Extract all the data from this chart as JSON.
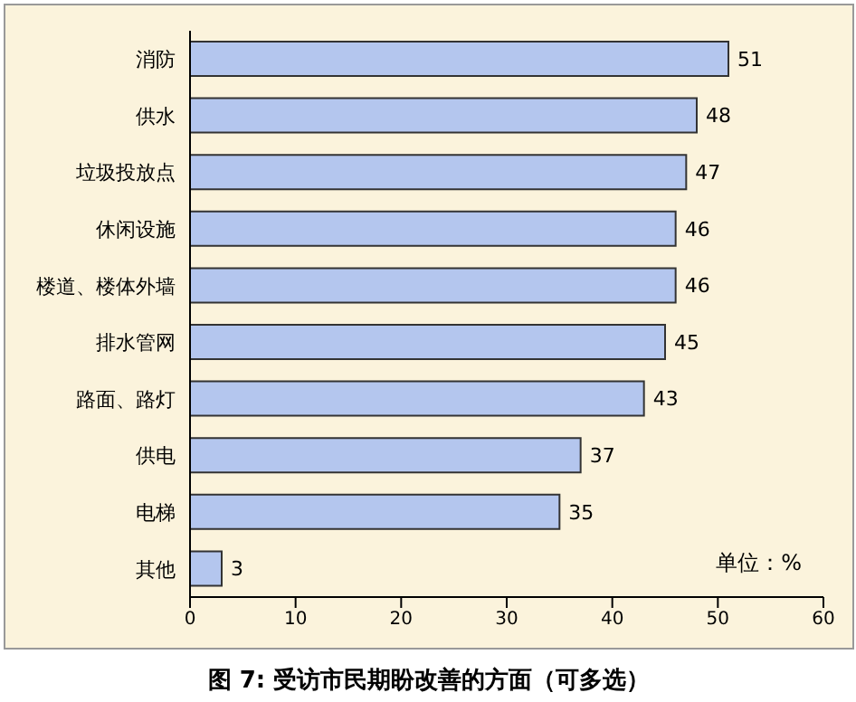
{
  "chart_data": {
    "type": "bar",
    "orientation": "horizontal",
    "title": "图 7: 受访市民期盼改善的方面（可多选）",
    "categories": [
      "消防",
      "供水",
      "垃圾投放点",
      "休闲设施",
      "楼道、楼体外墙",
      "排水管网",
      "路面、路灯",
      "供电",
      "电梯",
      "其他"
    ],
    "values": [
      51,
      48,
      47,
      46,
      46,
      45,
      43,
      37,
      35,
      3
    ],
    "color": "#b4c6ee",
    "xlim": [
      0,
      60
    ],
    "xticks": [
      0,
      10,
      20,
      30,
      40,
      50,
      60
    ],
    "data_labels": true,
    "annotations": [
      "单位：%"
    ]
  }
}
